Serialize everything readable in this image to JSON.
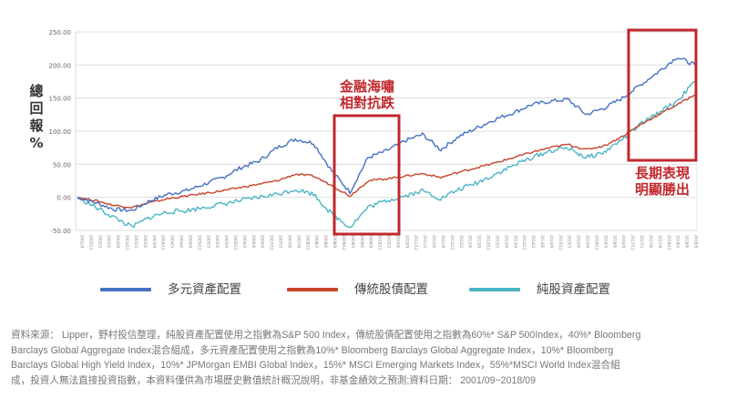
{
  "y_axis_label_chars": [
    "總",
    "回",
    "報",
    "%"
  ],
  "annotations": {
    "crisis": {
      "line1": "金融海嘯",
      "line2": "相對抗跌"
    },
    "long_term": {
      "line1": "長期表現",
      "line2": "明顯勝出"
    }
  },
  "legend": [
    {
      "label": "多元資產配置",
      "color": "#4472c4"
    },
    {
      "label": "傳統股債配置",
      "color": "#c8432a"
    },
    {
      "label": "純股資產配置",
      "color": "#4bb4c4"
    }
  ],
  "footnote": {
    "line1": "資料來源： Lipper，野村投信整理，純股資產配置使用之指數為S&P 500 Index，傳統股債配置使用之指數為60%* S&P 500Index，40%* Bloomberg",
    "line2": "Barclays Global Aggregate Index混合組成，多元資產配置使用之指數為10%* Bloomberg Barclays Global Aggregate Index，10%* Bloomberg",
    "line3": "Barclays Global High Yield Index，10%* JPMorgan EMBI Global Index，15%* MSCI Emerging Markets Index，55%*MSCI World Index混合組",
    "line4": "成，投資人無法直接投資指數，本資料僅供為市場歷史數值統計概況說明，非基金績效之預測;資料日期： 2001/09~2018/09"
  },
  "chart_data": {
    "type": "line",
    "title": "",
    "xlabel": "",
    "ylabel": "總回報%",
    "ylim": [
      -50,
      250
    ],
    "yticks": [
      "250.00",
      "200.00",
      "150.00",
      "100.00",
      "50.00",
      "0.00",
      "-50.00"
    ],
    "ytick_values": [
      250,
      200,
      150,
      100,
      50,
      0,
      -50
    ],
    "grid": true,
    "legend_position": "bottom",
    "x_range": [
      "2001/9",
      "2018/9"
    ],
    "x": [
      "2001/9",
      "2002/3",
      "2002/9",
      "2003/3",
      "2003/9",
      "2004/3",
      "2004/9",
      "2005/3",
      "2005/9",
      "2006/3",
      "2006/9",
      "2007/3",
      "2007/10",
      "2008/3",
      "2008/9",
      "2009/3",
      "2009/9",
      "2010/3",
      "2010/9",
      "2011/4",
      "2011/10",
      "2012/3",
      "2012/9",
      "2013/3",
      "2013/9",
      "2014/3",
      "2014/9",
      "2015/5",
      "2015/9",
      "2016/2",
      "2016/9",
      "2017/3",
      "2017/9",
      "2018/1",
      "2018/9"
    ],
    "series": [
      {
        "name": "多元資產配置",
        "color": "#4472c4",
        "values": [
          0,
          -8,
          -18,
          -20,
          -5,
          5,
          10,
          20,
          30,
          45,
          55,
          75,
          88,
          82,
          40,
          8,
          60,
          70,
          85,
          95,
          72,
          92,
          105,
          118,
          128,
          140,
          145,
          148,
          125,
          135,
          150,
          170,
          190,
          212,
          200
        ]
      },
      {
        "name": "傳統股債配置",
        "color": "#c8432a",
        "values": [
          0,
          -5,
          -12,
          -15,
          -8,
          -2,
          2,
          6,
          10,
          15,
          20,
          25,
          35,
          32,
          18,
          2,
          25,
          28,
          32,
          36,
          30,
          38,
          45,
          52,
          60,
          68,
          75,
          80,
          72,
          78,
          92,
          110,
          125,
          140,
          155
        ]
      },
      {
        "name": "純股資產配置",
        "color": "#4bb4c4",
        "values": [
          0,
          -15,
          -30,
          -45,
          -30,
          -22,
          -20,
          -15,
          -10,
          -5,
          0,
          5,
          12,
          5,
          -25,
          -45,
          -15,
          -5,
          2,
          10,
          -2,
          12,
          22,
          35,
          48,
          60,
          70,
          75,
          60,
          68,
          88,
          110,
          128,
          145,
          175
        ]
      }
    ],
    "highlight_boxes": [
      {
        "label": "金融海嘯相對抗跌",
        "x_from": "2007/10",
        "x_to": "2009/9"
      },
      {
        "label": "長期表現明顯勝出",
        "x_from": "2016/2",
        "x_to": "2018/9"
      }
    ]
  }
}
